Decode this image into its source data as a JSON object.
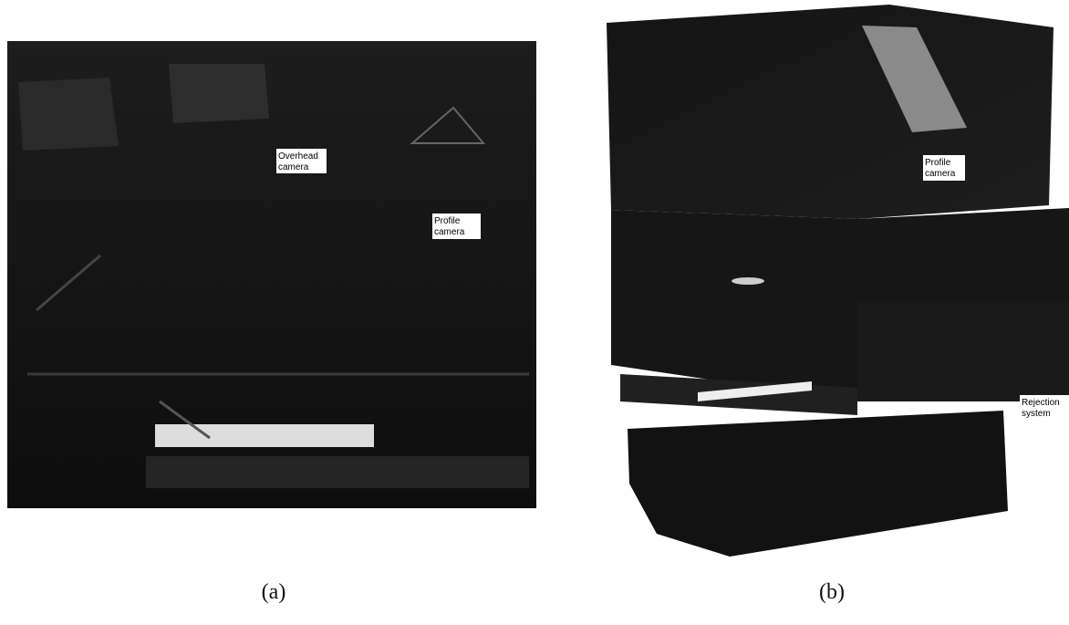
{
  "panels": [
    {
      "caption": "(a)",
      "labels": [
        {
          "lines": [
            "Overhead",
            "camera"
          ]
        },
        {
          "lines": [
            "Profile",
            "camera"
          ]
        }
      ]
    },
    {
      "caption": "(b)",
      "labels": [
        {
          "lines": [
            "Profile",
            "camera"
          ]
        },
        {
          "lines": [
            "Rejection",
            "system"
          ]
        }
      ]
    }
  ]
}
